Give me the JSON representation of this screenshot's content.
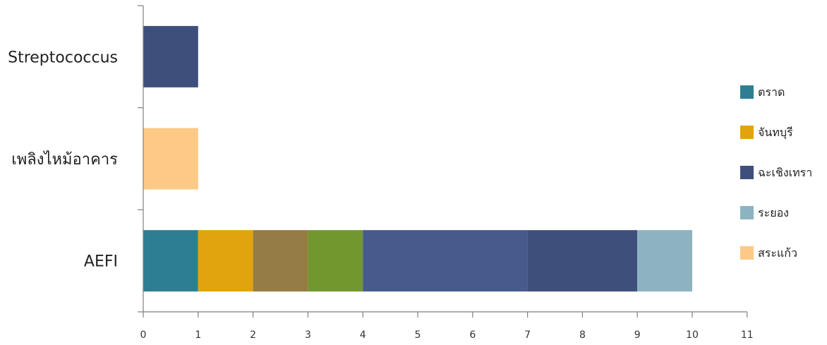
{
  "chart_data": {
    "type": "bar",
    "orientation": "horizontal",
    "stacked": true,
    "categories": [
      "Streptococcus",
      "เพลิงไหม้อาคาร",
      "AEFI"
    ],
    "xlim": [
      0,
      11
    ],
    "x_ticks": [
      0,
      1,
      2,
      3,
      4,
      5,
      6,
      7,
      8,
      9,
      10,
      11
    ],
    "grid": false,
    "legend_position": "right",
    "segments": [
      {
        "category": "Streptococcus",
        "start": 0,
        "end": 1,
        "color": "#3E4F7C"
      },
      {
        "category": "เพลิงไหม้อาคาร",
        "start": 0,
        "end": 1,
        "color": "#FDC986"
      },
      {
        "category": "AEFI",
        "start": 0,
        "end": 1,
        "color": "#2E7E93"
      },
      {
        "category": "AEFI",
        "start": 1,
        "end": 2,
        "color": "#E2A40C"
      },
      {
        "category": "AEFI",
        "start": 2,
        "end": 3,
        "color": "#947C44"
      },
      {
        "category": "AEFI",
        "start": 3,
        "end": 4,
        "color": "#72972F"
      },
      {
        "category": "AEFI",
        "start": 4,
        "end": 7,
        "color": "#465A8C"
      },
      {
        "category": "AEFI",
        "start": 7,
        "end": 9,
        "color": "#3E4F7C"
      },
      {
        "category": "AEFI",
        "start": 9,
        "end": 10,
        "color": "#8DB3C1"
      }
    ],
    "legend": [
      {
        "label": "ตราด",
        "color": "#2E7E93"
      },
      {
        "label": "จันทบุรี",
        "color": "#E2A40C"
      },
      {
        "label": "ฉะเชิงเทรา",
        "color": "#3E4F7C"
      },
      {
        "label": "ระยอง",
        "color": "#8DB3C1"
      },
      {
        "label": "สระแก้ว",
        "color": "#FDC986"
      }
    ]
  }
}
